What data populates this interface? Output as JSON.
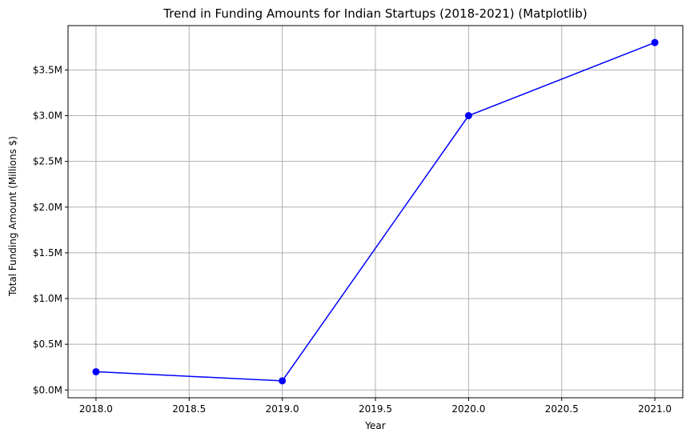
{
  "chart_data": {
    "type": "line",
    "title": "Trend in Funding Amounts for Indian Startups (2018-2021) (Matplotlib)",
    "xlabel": "Year",
    "ylabel": "Total Funding Amount (Millions $)",
    "x": [
      2018,
      2019,
      2020,
      2021
    ],
    "series": [
      {
        "values": [
          0.2,
          0.1,
          3.0,
          3.8
        ],
        "color": "#0000ff",
        "marker": "circle"
      }
    ],
    "xlim": [
      2017.85,
      2021.15
    ],
    "ylim": [
      -0.085,
      3.985
    ],
    "x_ticks": [
      2018.0,
      2018.5,
      2019.0,
      2019.5,
      2020.0,
      2020.5,
      2021.0
    ],
    "x_tick_labels": [
      "2018.0",
      "2018.5",
      "2019.0",
      "2019.5",
      "2020.0",
      "2020.5",
      "2021.0"
    ],
    "y_ticks": [
      0.0,
      0.5,
      1.0,
      1.5,
      2.0,
      2.5,
      3.0,
      3.5
    ],
    "y_tick_labels": [
      "$0.0M",
      "$0.5M",
      "$1.0M",
      "$1.5M",
      "$2.0M",
      "$2.5M",
      "$3.0M",
      "$3.5M"
    ],
    "grid": true,
    "grid_color": "#b0b0b0"
  }
}
